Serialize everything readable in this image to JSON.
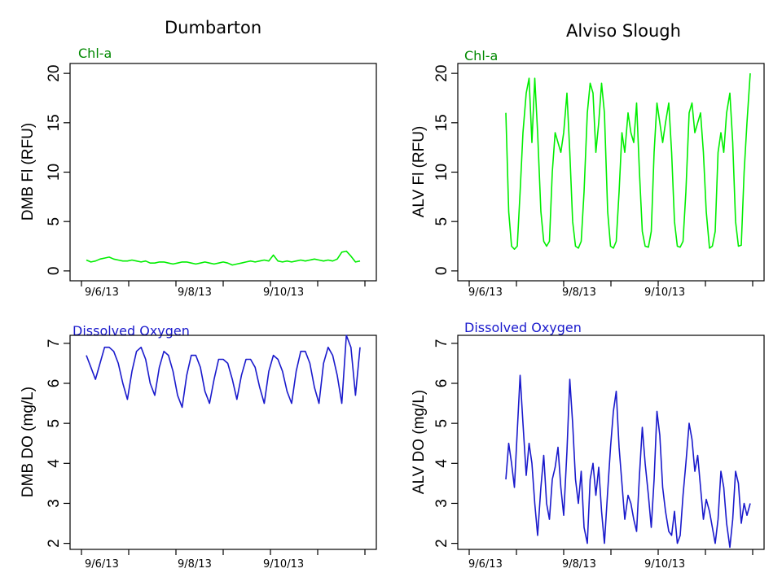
{
  "titles": {
    "left": "Dumbarton",
    "right": "Alviso Slough"
  },
  "panel_labels": {
    "chl": "Chl-a",
    "do": "Dissolved Oxygen"
  },
  "colors": {
    "chl": "#00ee00",
    "do": "#1a1acc",
    "chl_label": "#008800",
    "do_label": "#1a1acc"
  },
  "x_dates": [
    "9/6/13",
    "9/8/13",
    "9/10/13"
  ],
  "chart_data": [
    {
      "id": "dmb-chl",
      "type": "line",
      "title": "",
      "xlabel": "",
      "ylabel": "DMB Fl (RFU)",
      "ylim": [
        -1,
        21
      ],
      "yticks": [
        0,
        5,
        10,
        15,
        20
      ],
      "x": [
        0,
        0.1,
        0.2,
        0.3,
        0.4,
        0.5,
        0.6,
        0.7,
        0.8,
        0.9,
        1,
        1.1,
        1.2,
        1.3,
        1.4,
        1.5,
        1.6,
        1.7,
        1.8,
        1.9,
        2,
        2.1,
        2.2,
        2.3,
        2.4,
        2.5,
        2.6,
        2.7,
        2.8,
        2.9,
        3,
        3.1,
        3.2,
        3.3,
        3.4,
        3.5,
        3.6,
        3.7,
        3.8,
        3.9,
        4,
        4.1,
        4.2,
        4.3,
        4.4,
        4.5,
        4.6,
        4.7,
        4.8,
        4.9,
        5,
        5.1,
        5.2,
        5.3,
        5.4,
        5.5,
        5.6,
        5.7,
        5.8,
        5.9,
        6
      ],
      "series": [
        {
          "values": [
            1.1,
            0.9,
            1.0,
            1.2,
            1.3,
            1.4,
            1.2,
            1.1,
            1.0,
            1.0,
            1.1,
            1.0,
            0.9,
            1.0,
            0.8,
            0.8,
            0.9,
            0.9,
            0.8,
            0.7,
            0.8,
            0.9,
            0.9,
            0.8,
            0.7,
            0.8,
            0.9,
            0.8,
            0.7,
            0.8,
            0.9,
            0.8,
            0.6,
            0.7,
            0.8,
            0.9,
            1.0,
            0.9,
            1.0,
            1.1,
            1.0,
            1.6,
            1.0,
            0.9,
            1.0,
            0.9,
            1.0,
            1.1,
            1.0,
            1.1,
            1.2,
            1.1,
            1.0,
            1.1,
            1.0,
            1.2,
            1.9,
            2.0,
            1.5,
            0.9,
            1.0
          ]
        }
      ]
    },
    {
      "id": "alv-chl",
      "type": "line",
      "title": "",
      "xlabel": "",
      "ylabel": "ALV Fl (RFU)",
      "ylim": [
        -1,
        21
      ],
      "yticks": [
        0,
        5,
        10,
        15,
        20
      ],
      "x": [
        0,
        0.07,
        0.14,
        0.21,
        0.28,
        0.35,
        0.42,
        0.5,
        0.57,
        0.64,
        0.71,
        0.78,
        0.86,
        0.93,
        1,
        1.07,
        1.14,
        1.21,
        1.28,
        1.35,
        1.42,
        1.5,
        1.57,
        1.64,
        1.71,
        1.78,
        1.85,
        1.92,
        2,
        2.07,
        2.14,
        2.21,
        2.28,
        2.35,
        2.42,
        2.5,
        2.57,
        2.64,
        2.71,
        2.78,
        2.85,
        2.92,
        3,
        3.07,
        3.14,
        3.21,
        3.28,
        3.35,
        3.42,
        3.5,
        3.57,
        3.64,
        3.71,
        3.78,
        3.85,
        3.92,
        4,
        4.07,
        4.14,
        4.21,
        4.28,
        4.35,
        4.42,
        4.5,
        4.57,
        4.64,
        4.71,
        4.78,
        4.85,
        4.92,
        5,
        5.07,
        5.14,
        5.21,
        5.28,
        5.35,
        5.42,
        5.5,
        5.57,
        5.64,
        5.71,
        5.78,
        5.85,
        5.92,
        6
      ],
      "series": [
        {
          "values": [
            16,
            6,
            2.5,
            2.2,
            2.5,
            8,
            14,
            18,
            19.5,
            13,
            19.5,
            14,
            6,
            3,
            2.5,
            3,
            10,
            14,
            13,
            12,
            14,
            18,
            12,
            5,
            2.5,
            2.3,
            3,
            8,
            16,
            19,
            18,
            12,
            15,
            19,
            16,
            6,
            2.5,
            2.3,
            3,
            8,
            14,
            12,
            16,
            14,
            13,
            17,
            10,
            4,
            2.5,
            2.4,
            4,
            12,
            17,
            15,
            13,
            15,
            17,
            12,
            5,
            2.5,
            2.4,
            3,
            8,
            16,
            17,
            14,
            15,
            16,
            12,
            6,
            2.3,
            2.5,
            4,
            12,
            14,
            12,
            16,
            18,
            13,
            5,
            2.5,
            2.6,
            10,
            15,
            20
          ]
        }
      ]
    },
    {
      "id": "dmb-do",
      "type": "line",
      "title": "",
      "xlabel": "",
      "ylabel": "DMB DO (mg/L)",
      "ylim": [
        1.85,
        7.2
      ],
      "yticks": [
        2,
        3,
        4,
        5,
        6,
        7
      ],
      "x": [
        0,
        0.1,
        0.2,
        0.3,
        0.4,
        0.5,
        0.6,
        0.7,
        0.8,
        0.9,
        1,
        1.1,
        1.2,
        1.3,
        1.4,
        1.5,
        1.6,
        1.7,
        1.8,
        1.9,
        2,
        2.1,
        2.2,
        2.3,
        2.4,
        2.5,
        2.6,
        2.7,
        2.8,
        2.9,
        3,
        3.1,
        3.2,
        3.3,
        3.4,
        3.5,
        3.6,
        3.7,
        3.8,
        3.9,
        4,
        4.1,
        4.2,
        4.3,
        4.4,
        4.5,
        4.6,
        4.7,
        4.8,
        4.9,
        5,
        5.1,
        5.2,
        5.3,
        5.4,
        5.5,
        5.6,
        5.7,
        5.8,
        5.9,
        6
      ],
      "series": [
        {
          "values": [
            6.7,
            6.4,
            6.1,
            6.5,
            6.9,
            6.9,
            6.8,
            6.5,
            6.0,
            5.6,
            6.3,
            6.8,
            6.9,
            6.6,
            6.0,
            5.7,
            6.4,
            6.8,
            6.7,
            6.3,
            5.7,
            5.4,
            6.2,
            6.7,
            6.7,
            6.4,
            5.8,
            5.5,
            6.1,
            6.6,
            6.6,
            6.5,
            6.1,
            5.6,
            6.2,
            6.6,
            6.6,
            6.4,
            5.9,
            5.5,
            6.3,
            6.7,
            6.6,
            6.3,
            5.8,
            5.5,
            6.3,
            6.8,
            6.8,
            6.5,
            5.9,
            5.5,
            6.5,
            6.9,
            6.7,
            6.2,
            5.5,
            7.2,
            6.9,
            5.7,
            6.9
          ]
        }
      ]
    },
    {
      "id": "alv-do",
      "type": "line",
      "title": "",
      "xlabel": "",
      "ylabel": "ALV DO (mg/L)",
      "ylim": [
        1.85,
        7.2
      ],
      "yticks": [
        2,
        3,
        4,
        5,
        6,
        7
      ],
      "x": [
        0,
        0.07,
        0.14,
        0.21,
        0.28,
        0.35,
        0.42,
        0.5,
        0.57,
        0.64,
        0.71,
        0.78,
        0.86,
        0.93,
        1,
        1.07,
        1.14,
        1.21,
        1.28,
        1.35,
        1.42,
        1.5,
        1.57,
        1.64,
        1.71,
        1.78,
        1.85,
        1.92,
        2,
        2.07,
        2.14,
        2.21,
        2.28,
        2.35,
        2.42,
        2.5,
        2.57,
        2.64,
        2.71,
        2.78,
        2.85,
        2.92,
        3,
        3.07,
        3.14,
        3.21,
        3.28,
        3.35,
        3.42,
        3.5,
        3.57,
        3.64,
        3.71,
        3.78,
        3.85,
        3.92,
        4,
        4.07,
        4.14,
        4.21,
        4.28,
        4.35,
        4.42,
        4.5,
        4.57,
        4.64,
        4.71,
        4.78,
        4.85,
        4.92,
        5,
        5.07,
        5.14,
        5.21,
        5.28,
        5.35,
        5.42,
        5.5,
        5.57,
        5.64,
        5.71,
        5.78,
        5.85,
        5.92,
        6
      ],
      "series": [
        {
          "values": [
            3.6,
            4.5,
            4.0,
            3.4,
            4.8,
            6.2,
            5.0,
            3.7,
            4.5,
            4.0,
            3.0,
            2.2,
            3.4,
            4.2,
            3.0,
            2.6,
            3.6,
            3.9,
            4.4,
            3.4,
            2.7,
            4.3,
            6.1,
            5.0,
            3.6,
            3.0,
            3.8,
            2.4,
            2.0,
            3.6,
            4.0,
            3.2,
            3.9,
            2.8,
            2.0,
            3.3,
            4.4,
            5.3,
            5.8,
            4.4,
            3.5,
            2.6,
            3.2,
            3.0,
            2.6,
            2.3,
            3.7,
            4.9,
            4.0,
            3.2,
            2.4,
            3.6,
            5.3,
            4.7,
            3.4,
            2.8,
            2.3,
            2.2,
            2.8,
            2.0,
            2.2,
            3.2,
            4.0,
            5.0,
            4.6,
            3.8,
            4.2,
            3.4,
            2.6,
            3.1,
            2.8,
            2.4,
            2.0,
            2.6,
            3.8,
            3.4,
            2.5,
            1.9,
            2.6,
            3.8,
            3.5,
            2.5,
            3.0,
            2.7,
            3.0
          ]
        }
      ]
    }
  ]
}
